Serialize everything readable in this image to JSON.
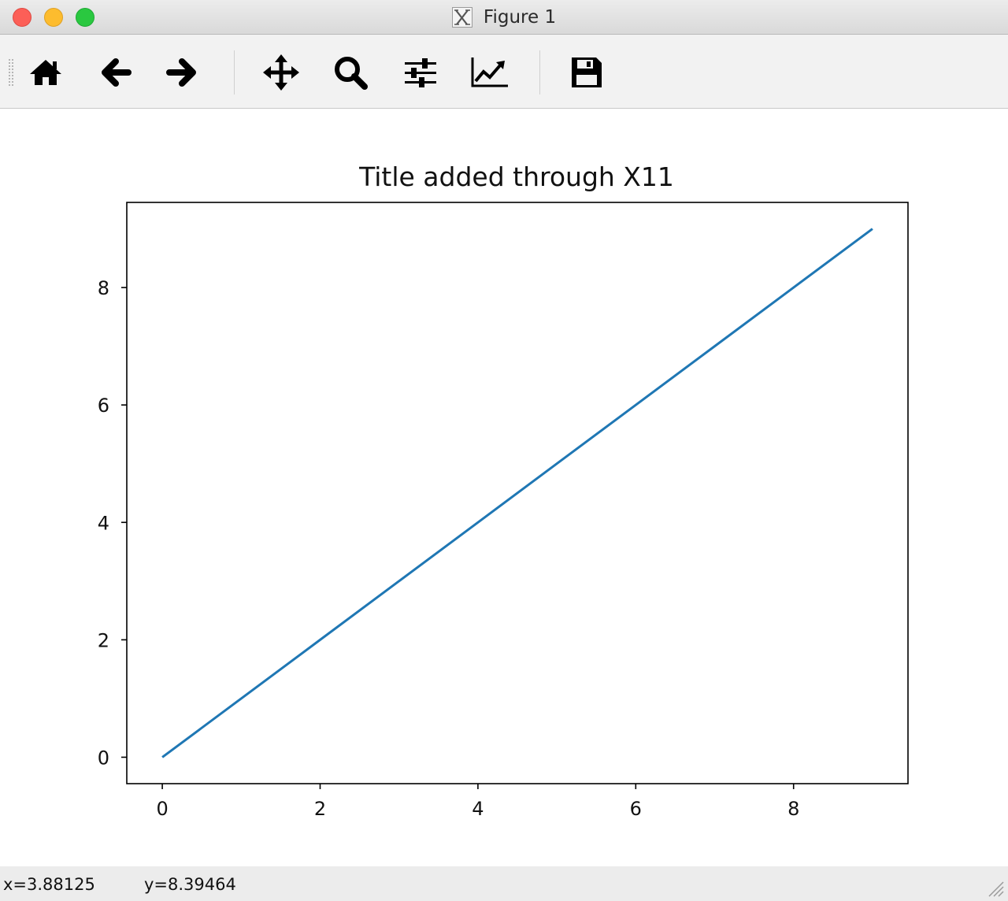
{
  "window": {
    "title": "Figure 1",
    "traffic_colors": {
      "close": "#fc5f57",
      "minimize": "#fdbc2e",
      "maximize": "#2ac840"
    }
  },
  "toolbar": {
    "items": [
      {
        "id": "home",
        "icon": "home-icon"
      },
      {
        "id": "back",
        "icon": "arrow-left-icon"
      },
      {
        "id": "forward",
        "icon": "arrow-right-icon"
      },
      {
        "id": "pan",
        "icon": "move-arrows-icon"
      },
      {
        "id": "zoom",
        "icon": "magnifier-icon"
      },
      {
        "id": "subplots",
        "icon": "sliders-icon"
      },
      {
        "id": "edit-axis",
        "icon": "line-chart-icon"
      },
      {
        "id": "save",
        "icon": "floppy-disk-icon"
      }
    ]
  },
  "chart_data": {
    "type": "line",
    "title": "Title added through X11",
    "xlabel": "",
    "ylabel": "",
    "xlim": [
      -0.45,
      9.45
    ],
    "ylim": [
      -0.45,
      9.45
    ],
    "xticks": [
      0,
      2,
      4,
      6,
      8
    ],
    "yticks": [
      0,
      2,
      4,
      6,
      8
    ],
    "grid": false,
    "series": [
      {
        "x": [
          0,
          1,
          2,
          3,
          4,
          5,
          6,
          7,
          8,
          9
        ],
        "y": [
          0,
          1,
          2,
          3,
          4,
          5,
          6,
          7,
          8,
          9
        ],
        "color": "#1f77b4"
      }
    ]
  },
  "statusbar": {
    "x_readout": "x=3.88125",
    "y_readout": "y=8.39464"
  }
}
